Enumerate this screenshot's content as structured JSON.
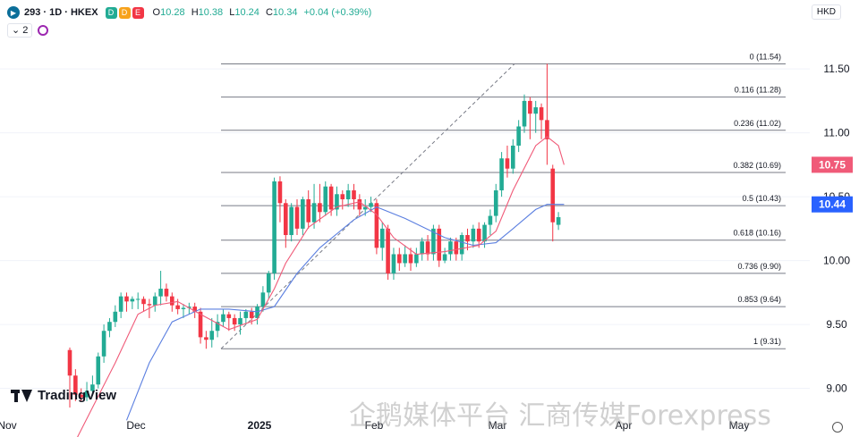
{
  "header": {
    "symbol": "293 · 1D · HKEX",
    "badge_d": "D",
    "badge_e": "E",
    "open_label": "O",
    "open": "10.28",
    "high_label": "H",
    "high": "10.38",
    "low_label": "L",
    "low": "10.24",
    "close_label": "C",
    "close": "10.34",
    "change": "+0.04 (+0.39%)",
    "indicators_count": "2",
    "currency": "HKD"
  },
  "watermark": "企鹅媒体平台 汇商传媒Forexpress",
  "logo": "TradingView",
  "colors": {
    "up": "#22ab94",
    "down": "#f23645",
    "ma_fast": "#f05a78",
    "ma_slow": "#5b7fe0",
    "fib": "#787b86"
  },
  "chart_data": {
    "type": "candlestick",
    "y_range": [
      8.85,
      11.9
    ],
    "y_ticks": [
      "11.50",
      "11.00",
      "10.50",
      "10.00",
      "9.50",
      "9.00"
    ],
    "y_tick_values": [
      11.5,
      11.0,
      10.5,
      10.0,
      9.5,
      9.0
    ],
    "x_labels": [
      "Nov",
      "Dec",
      "2025",
      "Feb",
      "Mar",
      "Apr",
      "May"
    ],
    "x_label_bold": [
      false,
      false,
      true,
      false,
      false,
      false,
      false
    ],
    "price_labels": [
      {
        "value": 10.75,
        "text": "10.75",
        "color": "#f05a78"
      },
      {
        "value": 10.44,
        "text": "10.44",
        "color": "#2962ff"
      }
    ],
    "fib_levels": [
      {
        "value": 11.54,
        "text": "0 (11.54)"
      },
      {
        "value": 11.28,
        "text": "0.116 (11.28)"
      },
      {
        "value": 11.02,
        "text": "0.236 (11.02)"
      },
      {
        "value": 10.69,
        "text": "0.382 (10.69)"
      },
      {
        "value": 10.43,
        "text": "0.5 (10.43)"
      },
      {
        "value": 10.16,
        "text": "0.618 (10.16)"
      },
      {
        "value": 9.9,
        "text": "0.736 (9.90)"
      },
      {
        "value": 9.64,
        "text": "0.853 (9.64)"
      },
      {
        "value": 9.31,
        "text": "1 (9.31)"
      }
    ],
    "trend_line": {
      "from": 9.31,
      "to": 11.54
    },
    "candles": [
      [
        9.3,
        9.1,
        8.85,
        9.32
      ],
      [
        9.1,
        8.95,
        8.9,
        9.15
      ],
      [
        8.95,
        8.93,
        8.9,
        9.0
      ],
      [
        8.93,
        8.98,
        8.9,
        9.05
      ],
      [
        8.98,
        9.03,
        8.95,
        9.1
      ],
      [
        9.03,
        9.25,
        9.0,
        9.28
      ],
      [
        9.25,
        9.45,
        9.2,
        9.5
      ],
      [
        9.45,
        9.52,
        9.4,
        9.55
      ],
      [
        9.52,
        9.6,
        9.48,
        9.65
      ],
      [
        9.6,
        9.72,
        9.55,
        9.75
      ],
      [
        9.72,
        9.68,
        9.6,
        9.75
      ],
      [
        9.68,
        9.7,
        9.62,
        9.72
      ],
      [
        9.7,
        9.7,
        9.62,
        9.75
      ],
      [
        9.7,
        9.66,
        9.6,
        9.72
      ],
      [
        9.66,
        9.65,
        9.55,
        9.7
      ],
      [
        9.65,
        9.72,
        9.6,
        9.75
      ],
      [
        9.72,
        9.78,
        9.65,
        9.92
      ],
      [
        9.78,
        9.72,
        9.68,
        9.82
      ],
      [
        9.72,
        9.65,
        9.6,
        9.75
      ],
      [
        9.65,
        9.62,
        9.58,
        9.7
      ],
      [
        9.62,
        9.63,
        9.55,
        9.66
      ],
      [
        9.63,
        9.64,
        9.58,
        9.67
      ],
      [
        9.64,
        9.6,
        9.55,
        9.67
      ],
      [
        9.6,
        9.4,
        9.35,
        9.63
      ],
      [
        9.4,
        9.38,
        9.31,
        9.45
      ],
      [
        9.38,
        9.45,
        9.32,
        9.55
      ],
      [
        9.45,
        9.52,
        9.4,
        9.58
      ],
      [
        9.52,
        9.58,
        9.48,
        9.62
      ],
      [
        9.58,
        9.55,
        9.45,
        9.6
      ],
      [
        9.55,
        9.5,
        9.45,
        9.58
      ],
      [
        9.5,
        9.55,
        9.42,
        9.6
      ],
      [
        9.55,
        9.6,
        9.5,
        9.62
      ],
      [
        9.6,
        9.55,
        9.5,
        9.63
      ],
      [
        9.55,
        9.64,
        9.5,
        9.66
      ],
      [
        9.64,
        9.75,
        9.6,
        9.8
      ],
      [
        9.75,
        9.9,
        9.7,
        9.92
      ],
      [
        9.9,
        10.62,
        9.85,
        10.65
      ],
      [
        10.62,
        10.45,
        10.3,
        10.66
      ],
      [
        10.45,
        10.2,
        10.1,
        10.48
      ],
      [
        10.2,
        10.42,
        10.15,
        10.45
      ],
      [
        10.42,
        10.25,
        10.2,
        10.48
      ],
      [
        10.25,
        10.48,
        10.2,
        10.5
      ],
      [
        10.48,
        10.3,
        10.25,
        10.55
      ],
      [
        10.3,
        10.45,
        10.25,
        10.6
      ],
      [
        10.45,
        10.38,
        10.3,
        10.6
      ],
      [
        10.38,
        10.58,
        10.35,
        10.62
      ],
      [
        10.58,
        10.4,
        10.35,
        10.6
      ],
      [
        10.4,
        10.52,
        10.35,
        10.58
      ],
      [
        10.52,
        10.48,
        10.4,
        10.55
      ],
      [
        10.48,
        10.55,
        10.42,
        10.6
      ],
      [
        10.55,
        10.48,
        10.4,
        10.6
      ],
      [
        10.48,
        10.4,
        10.35,
        10.52
      ],
      [
        10.4,
        10.42,
        10.35,
        10.48
      ],
      [
        10.42,
        10.45,
        10.38,
        10.5
      ],
      [
        10.45,
        10.1,
        10.05,
        10.48
      ],
      [
        10.1,
        10.25,
        10.0,
        10.3
      ],
      [
        10.25,
        9.9,
        9.85,
        10.28
      ],
      [
        9.9,
        10.05,
        9.85,
        10.1
      ],
      [
        10.05,
        9.98,
        9.92,
        10.1
      ],
      [
        9.98,
        10.05,
        9.95,
        10.12
      ],
      [
        10.05,
        9.98,
        9.92,
        10.1
      ],
      [
        9.98,
        10.05,
        9.95,
        10.1
      ],
      [
        10.05,
        10.15,
        10.0,
        10.18
      ],
      [
        10.15,
        10.05,
        10.0,
        10.2
      ],
      [
        10.05,
        10.25,
        10.0,
        10.28
      ],
      [
        10.25,
        10.0,
        9.95,
        10.28
      ],
      [
        10.0,
        10.05,
        9.98,
        10.1
      ],
      [
        10.05,
        10.15,
        10.0,
        10.18
      ],
      [
        10.15,
        10.05,
        10.0,
        10.18
      ],
      [
        10.05,
        10.2,
        10.0,
        10.22
      ],
      [
        10.2,
        10.15,
        10.08,
        10.25
      ],
      [
        10.15,
        10.25,
        10.1,
        10.28
      ],
      [
        10.25,
        10.15,
        10.1,
        10.3
      ],
      [
        10.15,
        10.28,
        10.1,
        10.3
      ],
      [
        10.28,
        10.35,
        10.2,
        10.4
      ],
      [
        10.35,
        10.55,
        10.3,
        10.6
      ],
      [
        10.55,
        10.8,
        10.5,
        10.85
      ],
      [
        10.8,
        10.72,
        10.65,
        10.9
      ],
      [
        10.72,
        10.9,
        10.68,
        10.95
      ],
      [
        10.9,
        11.05,
        10.85,
        11.1
      ],
      [
        11.05,
        11.25,
        11.0,
        11.3
      ],
      [
        11.25,
        11.15,
        10.95,
        11.28
      ],
      [
        11.15,
        11.2,
        11.0,
        11.25
      ],
      [
        11.2,
        11.1,
        10.95,
        11.23
      ],
      [
        11.1,
        10.95,
        10.75,
        11.54
      ],
      [
        10.72,
        10.3,
        10.15,
        10.75
      ],
      [
        10.28,
        10.34,
        10.24,
        10.38
      ]
    ],
    "ma_fast": [
      [
        0,
        8.5
      ],
      [
        8,
        9.2
      ],
      [
        12,
        9.58
      ],
      [
        15,
        9.65
      ],
      [
        19,
        9.68
      ],
      [
        23,
        9.58
      ],
      [
        28,
        9.46
      ],
      [
        33,
        9.54
      ],
      [
        36,
        9.78
      ],
      [
        38,
        9.98
      ],
      [
        42,
        10.26
      ],
      [
        47,
        10.42
      ],
      [
        51,
        10.46
      ],
      [
        54,
        10.36
      ],
      [
        57,
        10.18
      ],
      [
        61,
        10.05
      ],
      [
        66,
        10.07
      ],
      [
        72,
        10.12
      ],
      [
        75,
        10.23
      ],
      [
        78,
        10.55
      ],
      [
        82,
        10.9
      ],
      [
        84,
        10.97
      ],
      [
        86,
        10.9
      ],
      [
        87,
        10.75
      ]
    ],
    "ma_slow": [
      [
        10,
        8.75
      ],
      [
        14,
        9.2
      ],
      [
        18,
        9.52
      ],
      [
        23,
        9.62
      ],
      [
        28,
        9.62
      ],
      [
        33,
        9.6
      ],
      [
        36,
        9.64
      ],
      [
        40,
        9.9
      ],
      [
        44,
        10.1
      ],
      [
        50,
        10.32
      ],
      [
        54,
        10.42
      ],
      [
        59,
        10.33
      ],
      [
        66,
        10.18
      ],
      [
        71,
        10.12
      ],
      [
        75,
        10.14
      ],
      [
        78,
        10.25
      ],
      [
        82,
        10.4
      ],
      [
        84,
        10.44
      ],
      [
        87,
        10.44
      ]
    ]
  }
}
